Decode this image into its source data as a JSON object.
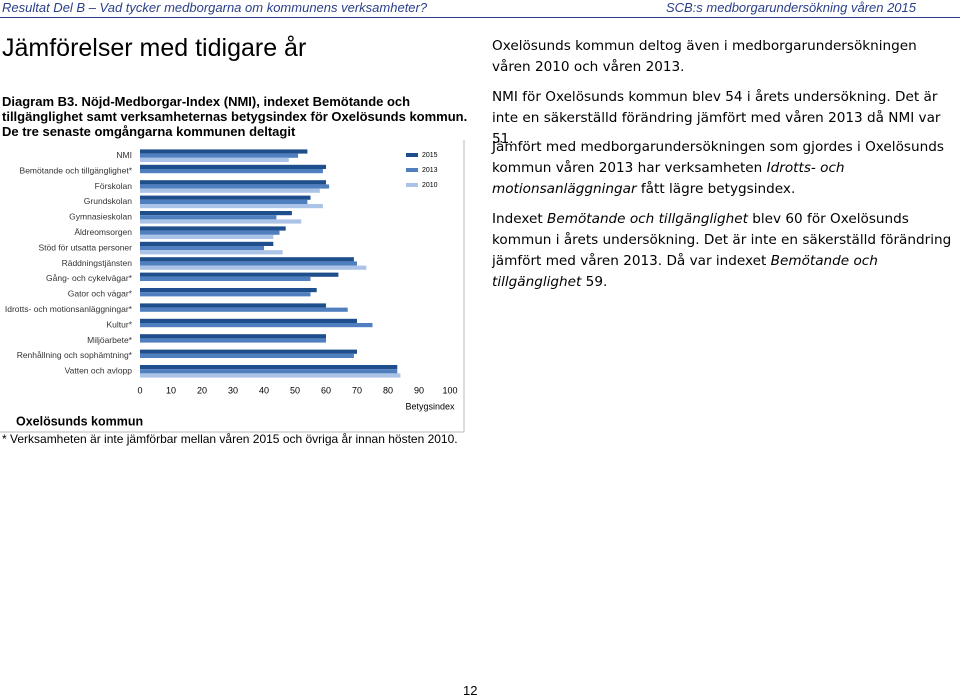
{
  "header": {
    "left": "Resultat Del B – Vad tycker medborgarna om kommunens verksamheter?",
    "right": "SCB:s medborgarundersökning våren 2015"
  },
  "title": "Jämförelser med tidigare år",
  "caption": "Diagram B3. Nöjd-Medborgar-Index (NMI), indexet Bemötande och tillgänglighet samt verksamheternas betygsindex för Oxelösunds kommun. De tre senaste omgångarna kommunen deltagit",
  "chart_data": {
    "type": "hbar",
    "categories": [
      "NMI",
      "Bemötande och tillgänglighet*",
      "Förskolan",
      "Grundskolan",
      "Gymnasieskolan",
      "Äldreomsorgen",
      "Stöd för utsatta personer",
      "Räddningstjänsten",
      "Gång- och cykelvägar*",
      "Gator och vägar*",
      "Idrotts- och motionsanläggningar*",
      "Kultur*",
      "Miljöarbete*",
      "Renhållning och sophämtning*",
      "Vatten och avlopp"
    ],
    "series": [
      {
        "name": "2015",
        "color": "#1f4e8c",
        "values": [
          54,
          60,
          60,
          55,
          49,
          47,
          43,
          69,
          64,
          57,
          60,
          70,
          60,
          70,
          83
        ]
      },
      {
        "name": "2013",
        "color": "#4f7fbf",
        "values": [
          51,
          59,
          61,
          54,
          44,
          45,
          40,
          70,
          55,
          55,
          67,
          75,
          60,
          69,
          83
        ]
      },
      {
        "name": "2010",
        "color": "#aac3e6",
        "values": [
          48,
          null,
          58,
          59,
          52,
          43,
          46,
          73,
          null,
          null,
          null,
          null,
          null,
          null,
          84
        ]
      }
    ],
    "xlim": [
      0,
      100
    ],
    "xticks": [
      0,
      10,
      20,
      30,
      40,
      50,
      60,
      70,
      80,
      90,
      100
    ],
    "xlabel": "Betygsindex",
    "source": "Oxelösunds kommun",
    "legend": "top-right"
  },
  "footnote": "* Verksamheten är inte jämförbar mellan våren 2015 och övriga år innan hösten 2010.",
  "paragraphs": [
    [
      "Oxelösunds kommun deltog även i medborgarundersökningen våren 2010 och våren 2013."
    ],
    [
      "NMI för Oxelösunds kommun blev 54 i årets undersökning. Det är inte en säkerställd förändring jämfört med våren 2013 då NMI var 51."
    ],
    [
      "Jämfört med medborgarundersökningen som gjordes i Oxelösunds kommun våren 2013 har verksamheten ",
      "Idrotts- och motionsanläggningar",
      " fått lägre betygsindex."
    ],
    [
      "Indexet ",
      "Bemötande och tillgänglighet",
      " blev 60 för Oxelösunds kommun i årets undersökning. Det är inte en säkerställd förändring jämfört med våren 2013. Då var indexet ",
      "Bemötande och tillgänglighet",
      " 59."
    ]
  ],
  "page_number": "12"
}
